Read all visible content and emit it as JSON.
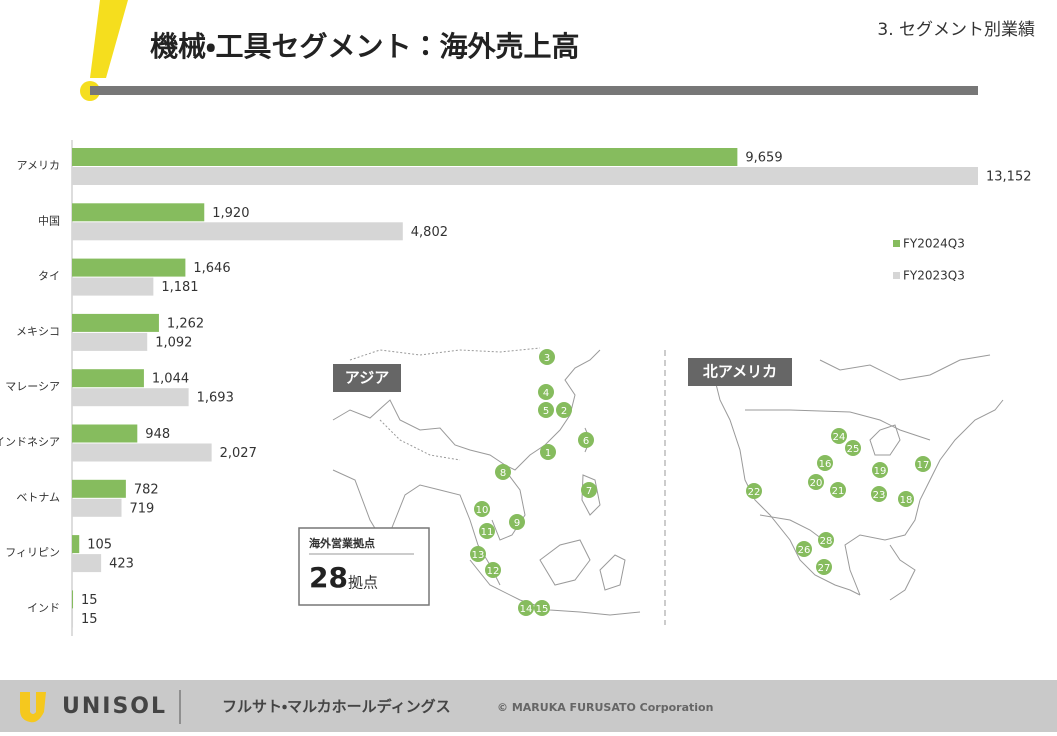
{
  "header": {
    "title": "機械・工具セグメント：海外売上高",
    "section": "3. セグメント別業績"
  },
  "chart_data": {
    "type": "bar",
    "orientation": "horizontal",
    "categories": [
      "アメリカ",
      "中国",
      "タイ",
      "メキシコ",
      "マレーシア",
      "インドネシア",
      "ベトナム",
      "フィリピン",
      "インド"
    ],
    "series": [
      {
        "name": "FY2024Q3",
        "color": "#86bc5e",
        "values": [
          9659,
          1920,
          1646,
          1262,
          1044,
          948,
          782,
          105,
          15
        ],
        "value_labels": [
          "9,659",
          "1,920",
          "1,646",
          "1,262",
          "1,044",
          "948",
          "782",
          "105",
          "15"
        ]
      },
      {
        "name": "FY2023Q3",
        "color": "#d6d6d6",
        "values": [
          13152,
          4802,
          1181,
          1092,
          1693,
          2027,
          719,
          423,
          15
        ],
        "value_labels": [
          "13,152",
          "4,802",
          "1,181",
          "1,092",
          "1,693",
          "2,027",
          "719",
          "423",
          "15"
        ]
      }
    ],
    "legend": "right"
  },
  "maps": {
    "asia": {
      "label": "アジア",
      "sites": [
        "1",
        "2",
        "3",
        "4",
        "5",
        "6",
        "7",
        "8",
        "9",
        "10",
        "11",
        "12",
        "13",
        "14",
        "15"
      ]
    },
    "north_america": {
      "label": "北アメリカ",
      "sites": [
        "16",
        "17",
        "18",
        "19",
        "20",
        "21",
        "22",
        "23",
        "24",
        "25",
        "26",
        "27",
        "28"
      ]
    },
    "summary": {
      "caption": "海外営業拠点",
      "count": "28",
      "unit": "拠点"
    }
  },
  "footer": {
    "brand": "UNISOL",
    "company": "フルサト・マルカホールディングス",
    "copyright": "© MARUKA FURUSATO Corporation"
  }
}
